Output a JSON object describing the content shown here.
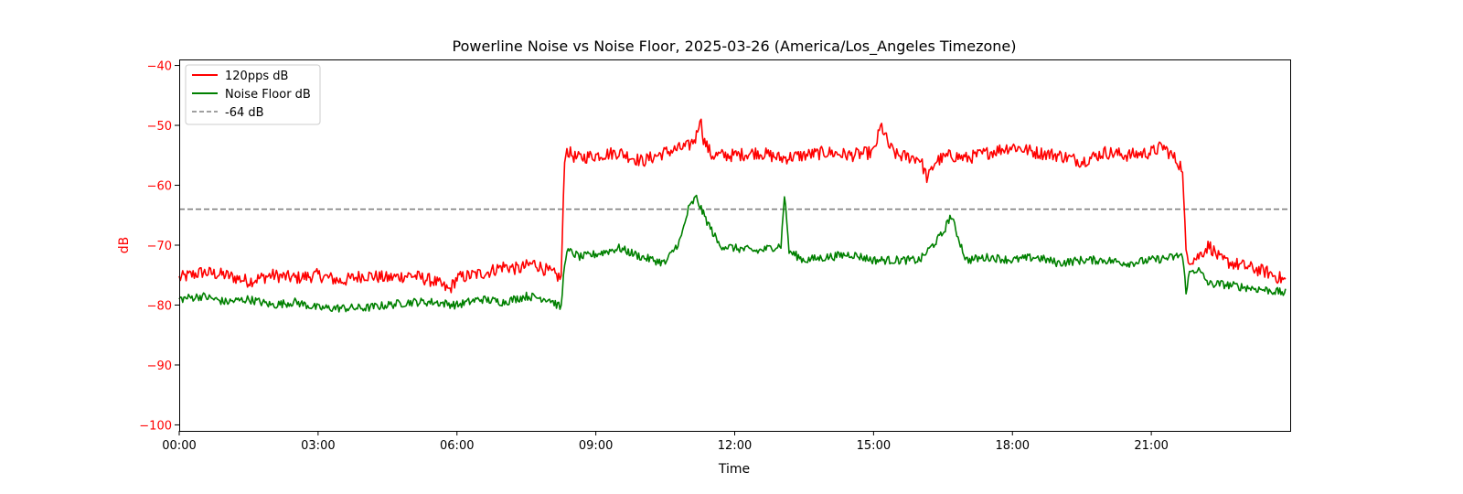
{
  "chart_data": {
    "type": "line",
    "title": "Powerline Noise vs Noise Floor, 2025-03-26 (America/Los_Angeles Timezone)",
    "xlabel": "Time",
    "ylabel": "dB",
    "xlim": [
      "00:00",
      "24:00"
    ],
    "ylim": [
      -101,
      -39
    ],
    "x_ticks": [
      "00:00",
      "03:00",
      "06:00",
      "09:00",
      "12:00",
      "15:00",
      "18:00",
      "21:00"
    ],
    "y_ticks": [
      -40,
      -50,
      -60,
      -70,
      -80,
      -90,
      -100
    ],
    "y_tick_labels": [
      "−40",
      "−50",
      "−60",
      "−70",
      "−80",
      "−90",
      "−100"
    ],
    "grid": false,
    "legend_position": "top-left",
    "colors": {
      "powerline": "#ff0000",
      "noise_floor": "#008000",
      "reference": "#808080",
      "axis_label": "#ff0000"
    },
    "reference_line": {
      "name": "-64 dB",
      "y": -64,
      "style": "dashed"
    },
    "series": [
      {
        "name": "120pps dB",
        "color": "#ff0000",
        "x": [
          "00:00",
          "00:30",
          "01:00",
          "01:30",
          "02:00",
          "02:30",
          "03:00",
          "03:30",
          "04:00",
          "04:30",
          "05:00",
          "05:30",
          "05:50",
          "06:00",
          "06:20",
          "06:40",
          "07:00",
          "07:20",
          "07:40",
          "08:00",
          "08:15",
          "08:20",
          "08:25",
          "08:35",
          "09:00",
          "09:30",
          "10:00",
          "10:30",
          "11:00",
          "11:10",
          "11:15",
          "11:20",
          "11:30",
          "12:00",
          "12:30",
          "13:00",
          "13:30",
          "14:00",
          "14:30",
          "15:00",
          "15:10",
          "15:20",
          "15:30",
          "16:00",
          "16:10",
          "16:20",
          "16:40",
          "17:00",
          "17:30",
          "18:00",
          "18:30",
          "19:00",
          "19:30",
          "20:00",
          "20:30",
          "21:00",
          "21:15",
          "21:30",
          "21:40",
          "21:45",
          "21:50",
          "22:00",
          "22:15",
          "22:30",
          "23:00",
          "23:30",
          "23:55"
        ],
        "values": [
          -75.5,
          -74.5,
          -75.0,
          -76.0,
          -75.0,
          -75.5,
          -75.0,
          -76.0,
          -75.0,
          -75.5,
          -75.0,
          -76.0,
          -77.5,
          -75.5,
          -75.0,
          -74.5,
          -73.5,
          -74.0,
          -73.0,
          -74.5,
          -75.5,
          -54.0,
          -54.5,
          -55.5,
          -55.0,
          -54.5,
          -56.0,
          -54.5,
          -53.5,
          -52.0,
          -48.5,
          -52.5,
          -55.0,
          -55.0,
          -54.5,
          -55.5,
          -55.0,
          -54.5,
          -55.0,
          -54.5,
          -50.0,
          -53.5,
          -55.0,
          -55.5,
          -59.0,
          -56.0,
          -55.0,
          -55.5,
          -54.5,
          -53.5,
          -54.5,
          -55.0,
          -56.0,
          -54.5,
          -55.0,
          -54.5,
          -53.5,
          -55.5,
          -57.0,
          -71.0,
          -72.5,
          -72.0,
          -70.0,
          -72.5,
          -73.5,
          -74.5,
          -76.0
        ]
      },
      {
        "name": "Noise Floor dB",
        "color": "#008000",
        "x": [
          "00:00",
          "00:30",
          "01:00",
          "01:30",
          "02:00",
          "02:30",
          "03:00",
          "03:30",
          "04:00",
          "04:30",
          "05:00",
          "05:30",
          "06:00",
          "06:30",
          "07:00",
          "07:30",
          "08:00",
          "08:15",
          "08:20",
          "08:25",
          "08:40",
          "09:00",
          "09:30",
          "10:00",
          "10:30",
          "10:50",
          "11:00",
          "11:10",
          "11:20",
          "11:40",
          "12:00",
          "12:30",
          "13:00",
          "13:05",
          "13:10",
          "13:30",
          "14:00",
          "14:30",
          "15:00",
          "15:30",
          "16:00",
          "16:30",
          "16:40",
          "17:00",
          "17:30",
          "18:00",
          "18:30",
          "19:00",
          "19:30",
          "20:00",
          "20:30",
          "21:00",
          "21:30",
          "21:40",
          "21:45",
          "21:50",
          "22:00",
          "22:15",
          "22:30",
          "23:00",
          "23:30",
          "23:55"
        ],
        "values": [
          -79.0,
          -78.5,
          -79.5,
          -79.0,
          -80.0,
          -79.5,
          -80.5,
          -80.5,
          -80.5,
          -80.0,
          -79.5,
          -79.5,
          -80.0,
          -79.0,
          -79.5,
          -78.5,
          -79.0,
          -80.5,
          -72.0,
          -71.0,
          -72.0,
          -71.5,
          -70.5,
          -72.0,
          -73.0,
          -69.0,
          -64.0,
          -62.0,
          -65.0,
          -70.0,
          -70.5,
          -71.0,
          -70.0,
          -61.0,
          -71.0,
          -72.5,
          -72.0,
          -71.5,
          -72.5,
          -72.5,
          -72.5,
          -68.0,
          -65.0,
          -72.5,
          -72.0,
          -72.5,
          -72.0,
          -73.0,
          -72.5,
          -72.5,
          -73.0,
          -72.5,
          -72.0,
          -71.5,
          -77.5,
          -74.5,
          -74.0,
          -76.5,
          -76.5,
          -77.0,
          -77.5,
          -78.0
        ]
      }
    ]
  }
}
